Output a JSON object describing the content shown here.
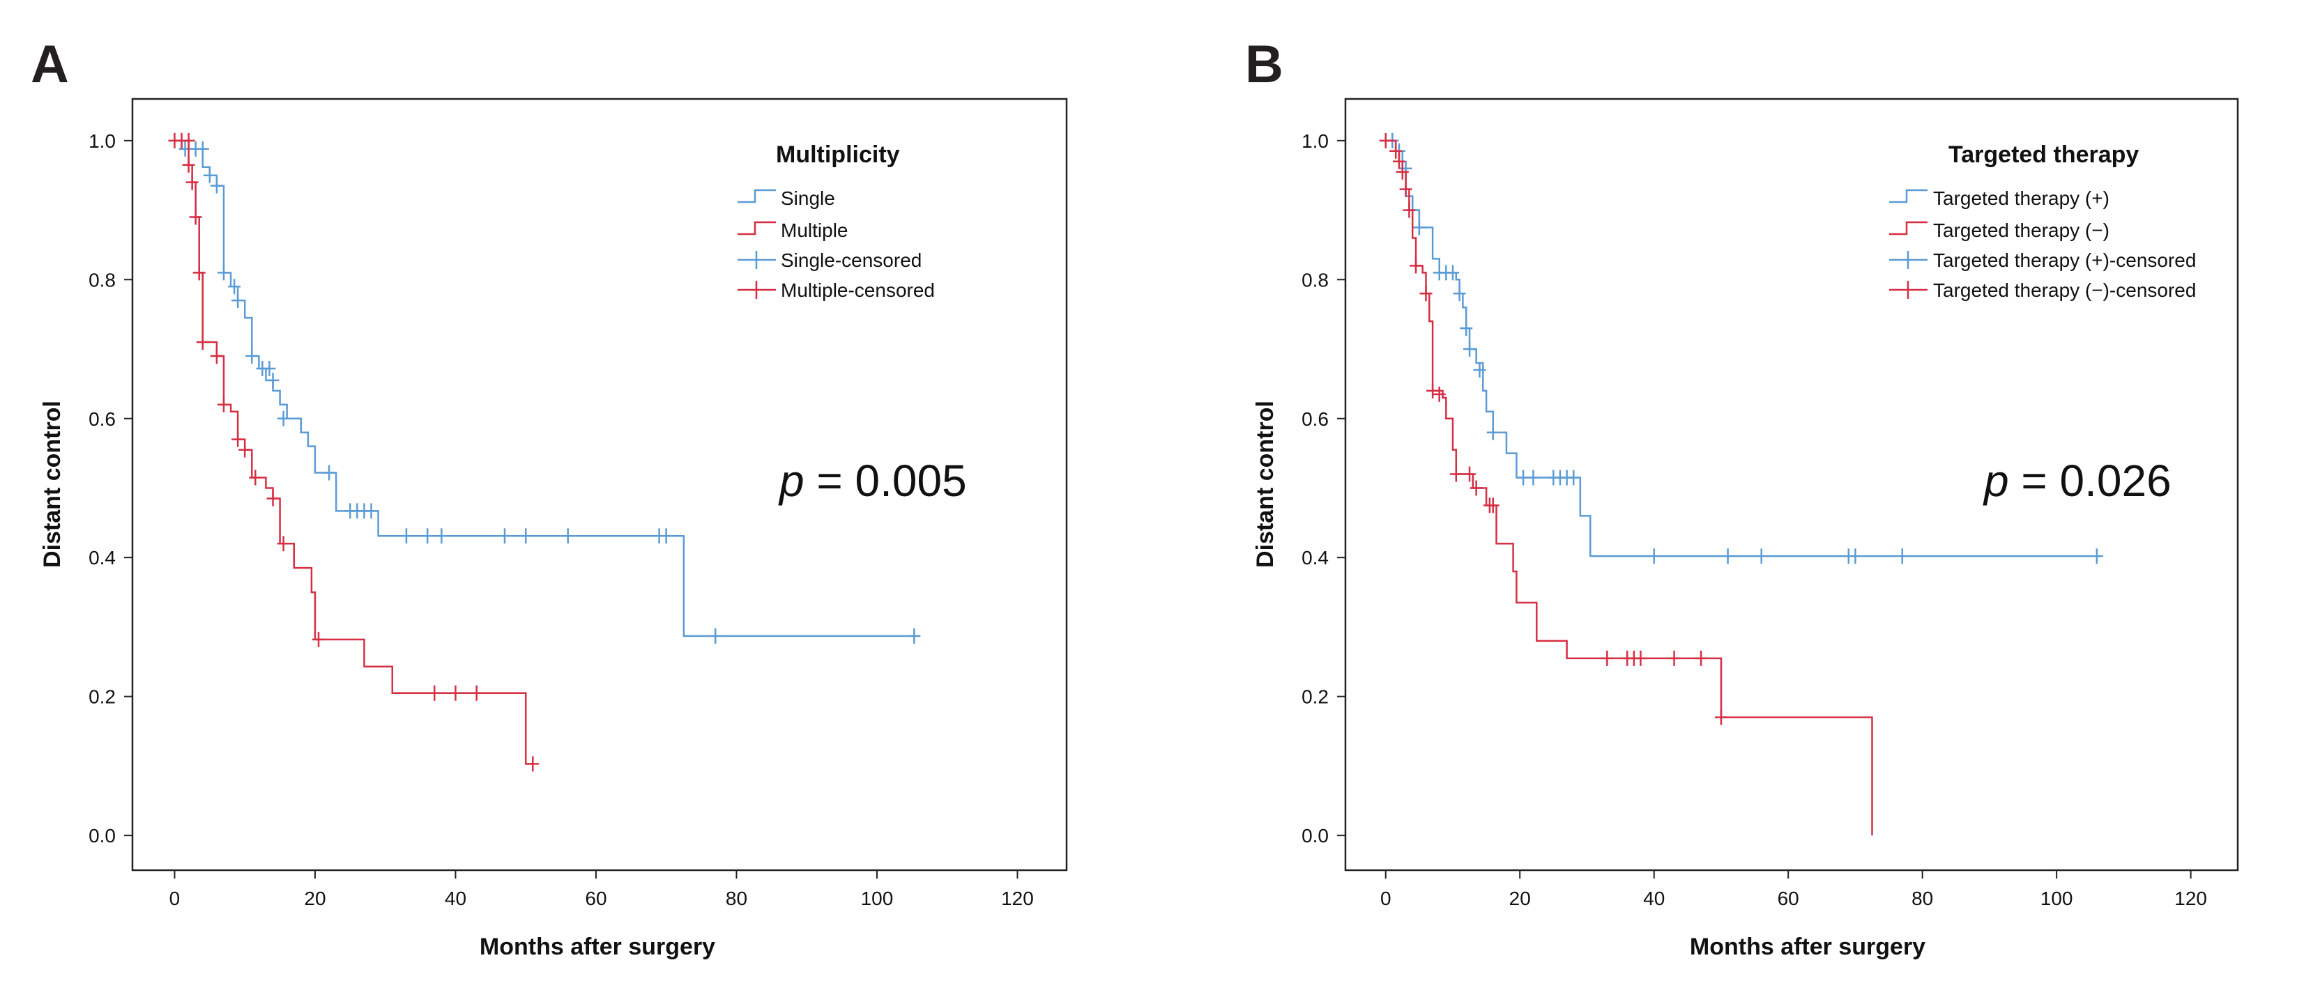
{
  "chart_data": [
    {
      "type": "line",
      "subtype": "kaplan-meier",
      "panel": "A",
      "title": "",
      "xlabel": "Months after surgery",
      "ylabel": "Distant control",
      "xlim": [
        -6,
        127
      ],
      "ylim": [
        -0.05,
        1.06
      ],
      "xticks": [
        0,
        20,
        40,
        60,
        80,
        100,
        120
      ],
      "yticks": [
        0.0,
        0.2,
        0.4,
        0.6,
        0.8,
        1.0
      ],
      "ytick_labels": [
        "0.0",
        "0.2",
        "0.4",
        "0.6",
        "0.8",
        "1.0"
      ],
      "legend_title": "Multiplicity",
      "legend_position": "top-right",
      "annotation": {
        "p_symbol": "p",
        "p_text": " = 0.005"
      },
      "series": [
        {
          "name": "Single",
          "censored_name": "Single-censored",
          "color": "#5b9bd5",
          "steps": [
            [
              0,
              1.0
            ],
            [
              1,
              0.988
            ],
            [
              4,
              0.962
            ],
            [
              5,
              0.95
            ],
            [
              6,
              0.935
            ],
            [
              7,
              0.81
            ],
            [
              8,
              0.79
            ],
            [
              9,
              0.77
            ],
            [
              10,
              0.745
            ],
            [
              11,
              0.69
            ],
            [
              12,
              0.672
            ],
            [
              13,
              0.655
            ],
            [
              14,
              0.64
            ],
            [
              15,
              0.62
            ],
            [
              16,
              0.6
            ],
            [
              18,
              0.58
            ],
            [
              19,
              0.56
            ],
            [
              20,
              0.522
            ],
            [
              23,
              0.467
            ],
            [
              29,
              0.431
            ],
            [
              72.5,
              0.287
            ],
            [
              105.3,
              0.287
            ]
          ],
          "censored": [
            [
              1.5,
              0.988
            ],
            [
              3,
              0.988
            ],
            [
              4,
              0.988
            ],
            [
              5,
              0.95
            ],
            [
              6,
              0.935
            ],
            [
              7,
              0.81
            ],
            [
              8.5,
              0.79
            ],
            [
              9,
              0.77
            ],
            [
              11,
              0.69
            ],
            [
              12.5,
              0.672
            ],
            [
              13.5,
              0.672
            ],
            [
              14,
              0.655
            ],
            [
              15.5,
              0.6
            ],
            [
              22,
              0.522
            ],
            [
              25,
              0.467
            ],
            [
              26,
              0.467
            ],
            [
              27,
              0.467
            ],
            [
              28,
              0.467
            ],
            [
              33,
              0.431
            ],
            [
              36,
              0.431
            ],
            [
              38,
              0.431
            ],
            [
              47,
              0.431
            ],
            [
              50,
              0.431
            ],
            [
              56,
              0.431
            ],
            [
              69,
              0.431
            ],
            [
              70,
              0.431
            ],
            [
              77,
              0.287
            ],
            [
              105.3,
              0.287
            ]
          ]
        },
        {
          "name": "Multiple",
          "censored_name": "Multiple-censored",
          "color": "#d62e43",
          "steps": [
            [
              0,
              1.0
            ],
            [
              2,
              0.965
            ],
            [
              2.5,
              0.94
            ],
            [
              3,
              0.89
            ],
            [
              3.5,
              0.81
            ],
            [
              4,
              0.71
            ],
            [
              6,
              0.69
            ],
            [
              7,
              0.62
            ],
            [
              8,
              0.61
            ],
            [
              9,
              0.57
            ],
            [
              10,
              0.555
            ],
            [
              11,
              0.515
            ],
            [
              13,
              0.5
            ],
            [
              14,
              0.485
            ],
            [
              15,
              0.42
            ],
            [
              17,
              0.385
            ],
            [
              19.5,
              0.35
            ],
            [
              20,
              0.282
            ],
            [
              27,
              0.243
            ],
            [
              31,
              0.205
            ],
            [
              50,
              0.103
            ],
            [
              51,
              0.103
            ]
          ],
          "censored": [
            [
              0,
              1.0
            ],
            [
              1,
              1.0
            ],
            [
              2,
              1.0
            ],
            [
              2,
              0.965
            ],
            [
              2.5,
              0.94
            ],
            [
              3,
              0.89
            ],
            [
              3.5,
              0.81
            ],
            [
              4,
              0.71
            ],
            [
              6,
              0.69
            ],
            [
              7,
              0.62
            ],
            [
              9,
              0.57
            ],
            [
              10,
              0.555
            ],
            [
              11.5,
              0.515
            ],
            [
              14,
              0.485
            ],
            [
              15.5,
              0.42
            ],
            [
              20.5,
              0.282
            ],
            [
              37,
              0.205
            ],
            [
              40,
              0.205
            ],
            [
              43,
              0.205
            ],
            [
              51,
              0.103
            ]
          ]
        }
      ]
    },
    {
      "type": "line",
      "subtype": "kaplan-meier",
      "panel": "B",
      "title": "",
      "xlabel": "Months after surgery",
      "ylabel": "Distant control",
      "xlim": [
        -6,
        127
      ],
      "ylim": [
        -0.05,
        1.06
      ],
      "xticks": [
        0,
        20,
        40,
        60,
        80,
        100,
        120
      ],
      "yticks": [
        0.0,
        0.2,
        0.4,
        0.6,
        0.8,
        1.0
      ],
      "ytick_labels": [
        "0.0",
        "0.2",
        "0.4",
        "0.6",
        "0.8",
        "1.0"
      ],
      "legend_title": "Targeted therapy",
      "legend_position": "top-right",
      "annotation": {
        "p_symbol": "p",
        "p_text": " = 0.026"
      },
      "series": [
        {
          "name": "Targeted therapy (+)",
          "censored_name": "Targeted therapy (+)-censored",
          "color": "#5b9bd5",
          "steps": [
            [
              0,
              1.0
            ],
            [
              1.5,
              0.985
            ],
            [
              2.5,
              0.96
            ],
            [
              3,
              0.92
            ],
            [
              4,
              0.9
            ],
            [
              5,
              0.875
            ],
            [
              7,
              0.83
            ],
            [
              8,
              0.81
            ],
            [
              10.5,
              0.8
            ],
            [
              11,
              0.78
            ],
            [
              11.5,
              0.76
            ],
            [
              12,
              0.73
            ],
            [
              12.5,
              0.7
            ],
            [
              13.5,
              0.68
            ],
            [
              14.5,
              0.64
            ],
            [
              15,
              0.61
            ],
            [
              16,
              0.58
            ],
            [
              18,
              0.55
            ],
            [
              19.5,
              0.515
            ],
            [
              29,
              0.46
            ],
            [
              30.5,
              0.402
            ],
            [
              106,
              0.402
            ]
          ],
          "censored": [
            [
              1,
              1.0
            ],
            [
              2,
              0.985
            ],
            [
              3,
              0.96
            ],
            [
              4,
              0.9
            ],
            [
              5,
              0.875
            ],
            [
              8,
              0.81
            ],
            [
              9,
              0.81
            ],
            [
              10,
              0.81
            ],
            [
              11,
              0.78
            ],
            [
              12,
              0.73
            ],
            [
              12.5,
              0.7
            ],
            [
              14,
              0.67
            ],
            [
              16,
              0.58
            ],
            [
              20.5,
              0.515
            ],
            [
              22,
              0.515
            ],
            [
              25,
              0.515
            ],
            [
              26,
              0.515
            ],
            [
              27,
              0.515
            ],
            [
              28,
              0.515
            ],
            [
              40,
              0.402
            ],
            [
              51,
              0.402
            ],
            [
              56,
              0.402
            ],
            [
              69,
              0.402
            ],
            [
              70,
              0.402
            ],
            [
              77,
              0.402
            ],
            [
              106,
              0.402
            ]
          ]
        },
        {
          "name": "Targeted therapy (−)",
          "censored_name": "Targeted therapy (−)-censored",
          "color": "#d62e43",
          "steps": [
            [
              0,
              1.0
            ],
            [
              1.5,
              0.985
            ],
            [
              2,
              0.97
            ],
            [
              2.5,
              0.955
            ],
            [
              3,
              0.93
            ],
            [
              3.5,
              0.9
            ],
            [
              4,
              0.86
            ],
            [
              4.5,
              0.82
            ],
            [
              5.5,
              0.81
            ],
            [
              6,
              0.78
            ],
            [
              6.5,
              0.74
            ],
            [
              7,
              0.64
            ],
            [
              8.5,
              0.63
            ],
            [
              9,
              0.6
            ],
            [
              10,
              0.555
            ],
            [
              10.5,
              0.52
            ],
            [
              12,
              0.52
            ],
            [
              13,
              0.5
            ],
            [
              15,
              0.475
            ],
            [
              16.5,
              0.42
            ],
            [
              19,
              0.38
            ],
            [
              19.5,
              0.335
            ],
            [
              22.5,
              0.28
            ],
            [
              27,
              0.255
            ],
            [
              50,
              0.17
            ],
            [
              72.5,
              0.17
            ],
            [
              72.5,
              0.0
            ]
          ],
          "censored": [
            [
              0,
              1.0
            ],
            [
              1.5,
              0.985
            ],
            [
              2,
              0.97
            ],
            [
              2.5,
              0.955
            ],
            [
              3,
              0.93
            ],
            [
              3.5,
              0.9
            ],
            [
              4.5,
              0.82
            ],
            [
              6,
              0.78
            ],
            [
              7,
              0.64
            ],
            [
              8,
              0.635
            ],
            [
              10.5,
              0.52
            ],
            [
              12.5,
              0.52
            ],
            [
              13.5,
              0.5
            ],
            [
              15.5,
              0.475
            ],
            [
              16,
              0.475
            ],
            [
              33,
              0.255
            ],
            [
              36,
              0.255
            ],
            [
              37,
              0.255
            ],
            [
              38,
              0.255
            ],
            [
              43,
              0.255
            ],
            [
              47,
              0.255
            ],
            [
              50,
              0.17
            ]
          ]
        }
      ]
    }
  ]
}
